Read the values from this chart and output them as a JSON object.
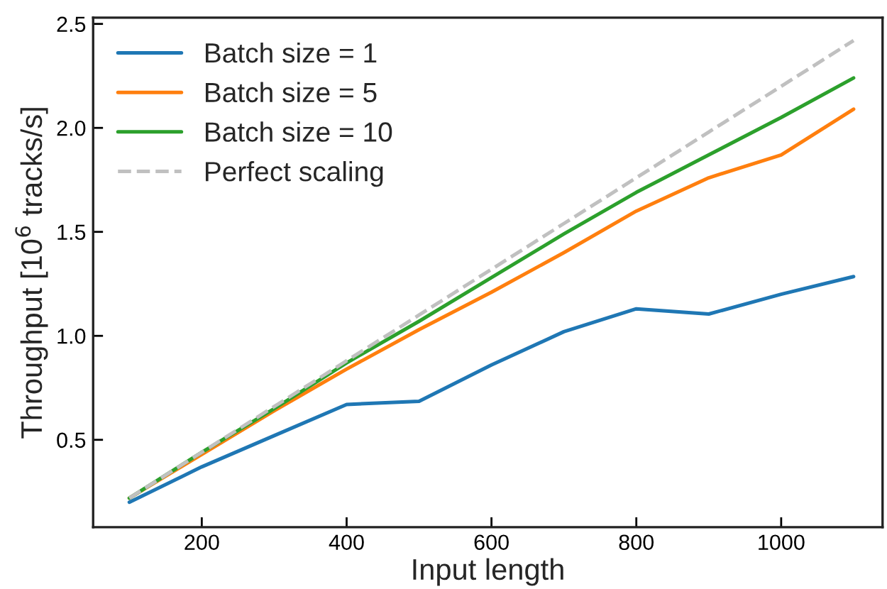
{
  "chart_data": {
    "type": "line",
    "xlabel": "Input length",
    "ylabel": "Throughput [10$^{6}$ tracks/s]",
    "x": [
      100,
      200,
      300,
      400,
      500,
      600,
      700,
      800,
      900,
      1000,
      1100
    ],
    "series": [
      {
        "name": "Batch size = 1",
        "color": "#1f77b4",
        "values": [
          0.2,
          0.37,
          0.52,
          0.67,
          0.685,
          0.86,
          1.02,
          1.13,
          1.105,
          1.2,
          1.285
        ]
      },
      {
        "name": "Batch size = 5",
        "color": "#ff7f0e",
        "values": [
          0.22,
          0.43,
          0.64,
          0.84,
          1.03,
          1.21,
          1.4,
          1.6,
          1.76,
          1.87,
          2.09
        ]
      },
      {
        "name": "Batch size = 10",
        "color": "#2ca02c",
        "values": [
          0.22,
          0.44,
          0.65,
          0.87,
          1.07,
          1.28,
          1.49,
          1.69,
          1.87,
          2.05,
          2.24
        ]
      },
      {
        "name": "Perfect scaling",
        "color": "#c0c0c0",
        "line_style": "dashed",
        "values": [
          0.22,
          0.44,
          0.66,
          0.88,
          1.1,
          1.32,
          1.54,
          1.76,
          1.98,
          2.2,
          2.42
        ]
      }
    ],
    "xlim": [
      50,
      1140
    ],
    "ylim": [
      0.08,
      2.53
    ],
    "xticks": [
      200,
      400,
      600,
      800,
      1000
    ],
    "yticks": [
      0.5,
      {
        "value": 1,
        "label": "1.0"
      },
      1.5,
      {
        "value": 2,
        "label": "2.0"
      },
      2.5
    ],
    "legend": "top left",
    "grid": false,
    "marker": "none"
  }
}
